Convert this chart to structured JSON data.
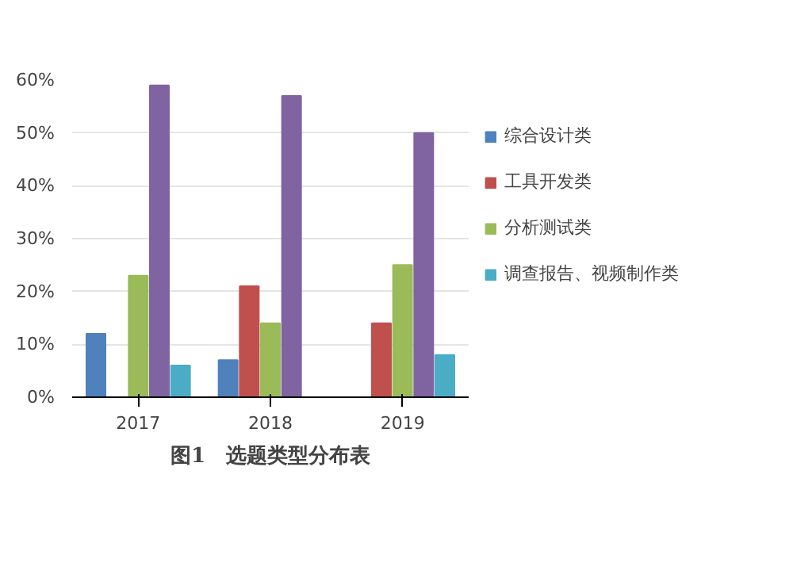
{
  "chart_data": {
    "type": "bar",
    "categories": [
      "2017",
      "2018",
      "2019"
    ],
    "series": [
      {
        "name": "综合设计类",
        "color": "#4f81bd",
        "values": [
          12,
          7,
          0
        ]
      },
      {
        "name": "工具开发类",
        "color": "#c0504d",
        "values": [
          0,
          21,
          14
        ]
      },
      {
        "name": "分析测试类",
        "color": "#9bbb59",
        "values": [
          23,
          14,
          25
        ]
      },
      {
        "color": "#8064a2",
        "values": [
          59,
          57,
          50
        ]
      },
      {
        "name": "调查报告、视频制作类",
        "color": "#4bacc6",
        "values": [
          6,
          0,
          8
        ]
      }
    ],
    "ylim": [
      0,
      60
    ],
    "yticks": [
      {
        "value": 0,
        "label": "0%"
      },
      {
        "value": 10,
        "label": "10%"
      },
      {
        "value": 20,
        "label": "20%"
      },
      {
        "value": 30,
        "label": "30%"
      },
      {
        "value": 40,
        "label": "40%"
      },
      {
        "value": 50,
        "label": "50%"
      },
      {
        "value": 60,
        "label": "60%"
      }
    ],
    "grid": "y",
    "legend": "right",
    "annotations": [
      "图1　选题类型分布表"
    ]
  }
}
